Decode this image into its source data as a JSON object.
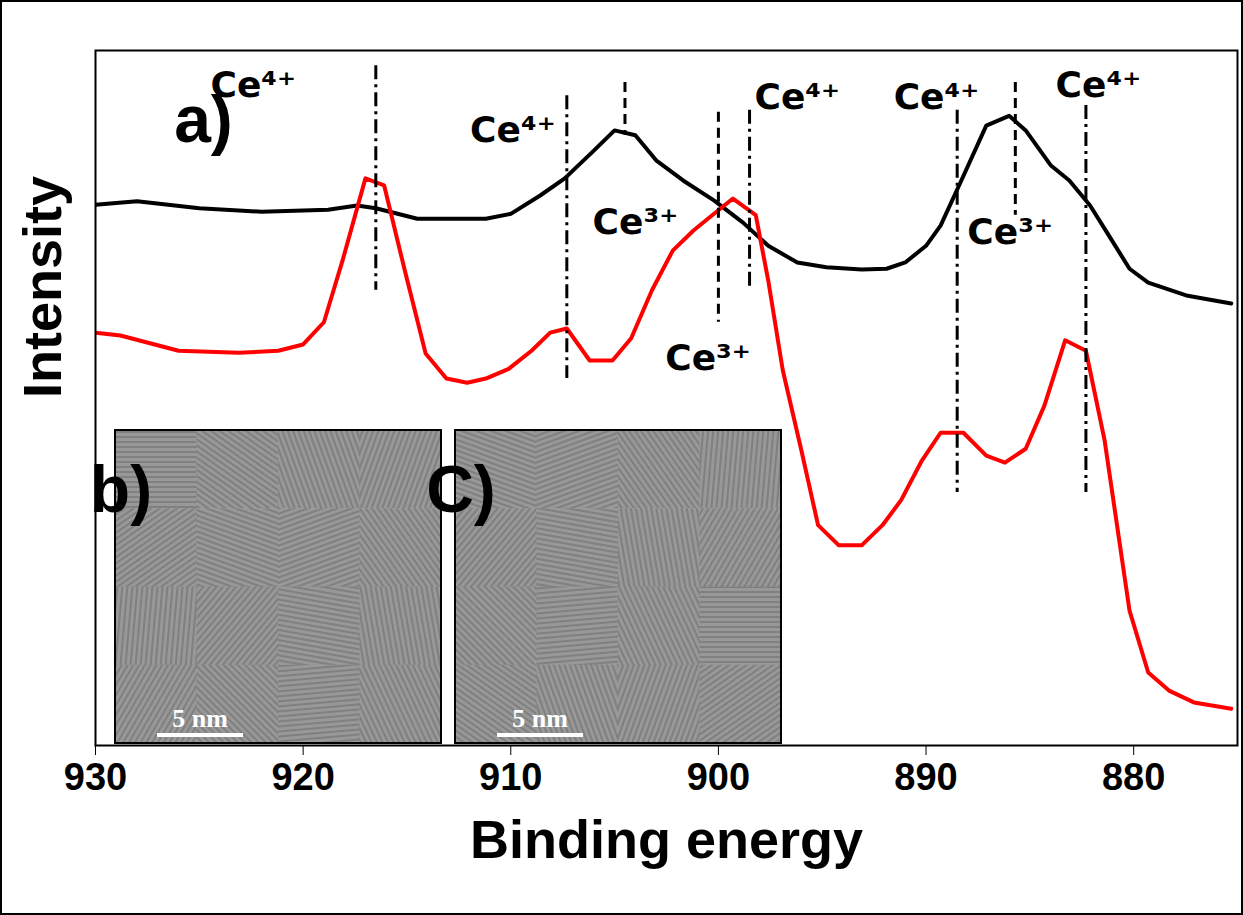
{
  "chart_data": {
    "type": "line",
    "xlabel": "Binding energy",
    "ylabel": "Intensity",
    "xlim": [
      930,
      875
    ],
    "xticks": [
      930,
      920,
      910,
      900,
      890,
      880
    ],
    "ylim": [
      0,
      100
    ],
    "tick_labels": "x",
    "grid": false,
    "series": [
      {
        "color": "#000000",
        "line_style": "solid",
        "x": [
          930,
          928,
          925,
          922,
          918.8,
          917.4,
          916.5,
          914.5,
          911.2,
          910,
          908.6,
          907.4,
          906,
          905,
          904,
          903,
          901.7,
          900.2,
          898.8,
          897.6,
          896.2,
          894.8,
          893.1,
          891.9,
          891,
          890,
          889.3,
          888.3,
          887.1,
          886,
          885.2,
          884,
          883.1,
          882.1,
          881.2,
          880.2,
          879.3,
          877.4,
          875.3
        ],
        "values": [
          77.8,
          78.3,
          77.3,
          76.8,
          77.1,
          77.7,
          77.3,
          75.8,
          75.8,
          76.5,
          79.1,
          81.6,
          85.6,
          88.5,
          87.8,
          84.2,
          81.3,
          78.4,
          75.2,
          71.9,
          69.5,
          68.8,
          68.5,
          68.6,
          69.5,
          71.9,
          74.8,
          81.3,
          89.2,
          90.6,
          88.5,
          83.5,
          81.3,
          77.7,
          73.4,
          68.6,
          66.6,
          64.7,
          63.6
        ]
      },
      {
        "color": "#ff0000",
        "line_style": "solid",
        "x": [
          930,
          928.8,
          926,
          923.1,
          921.2,
          920,
          919,
          918.1,
          917,
          916.1,
          915.1,
          914.1,
          913.1,
          912.1,
          911.2,
          910.1,
          909,
          908.1,
          907.3,
          906.2,
          905.1,
          904.2,
          903.2,
          902.2,
          901.2,
          900.3,
          899.3,
          898.2,
          897.6,
          896.9,
          896,
          895.2,
          894.2,
          893.1,
          892.1,
          891.2,
          890.2,
          889.3,
          888.2,
          887.1,
          886.2,
          885.2,
          884.3,
          883.3,
          882.3,
          881.4,
          880.2,
          879.3,
          878.3,
          877.1,
          875.3
        ],
        "values": [
          59.4,
          59,
          56.8,
          56.5,
          56.8,
          57.7,
          60.9,
          69.8,
          81.6,
          80.6,
          68.3,
          56.4,
          52.8,
          52.2,
          52.8,
          54.2,
          56.8,
          59.4,
          60,
          55.4,
          55.4,
          58.6,
          65.5,
          71.2,
          74.1,
          76.3,
          78.7,
          76.3,
          66.9,
          54,
          42.4,
          31.7,
          28.8,
          28.8,
          31.7,
          35.3,
          41,
          45,
          45,
          41.7,
          40.7,
          42.7,
          48.9,
          58.3,
          56.8,
          43.9,
          19.4,
          10.5,
          7.9,
          6.2,
          5.3
        ]
      }
    ],
    "annotations": [
      {
        "text": "Ce⁴⁺",
        "x": 916.5,
        "y1": 97.8,
        "y2": 65.5,
        "line_style": "dashdot",
        "label_x": 922.4,
        "label_y": 95
      },
      {
        "text": "Ce⁴⁺",
        "x": 907.3,
        "y1": 93.5,
        "y2": 52.8,
        "line_style": "dashdot",
        "label_x": 909.9,
        "label_y": 88.5
      },
      {
        "text": "Ce³⁺",
        "x": 904.5,
        "y1": 95.4,
        "y2": 87.8,
        "line_style": "dashed",
        "label_x": 904.0,
        "label_y": 75.3
      },
      {
        "text": "Ce³⁺",
        "x": 900,
        "y1": 91.1,
        "y2": 60.9,
        "line_style": "dashed",
        "label_x": 900.5,
        "label_y": 55.7
      },
      {
        "text": "Ce⁴⁺",
        "x": 898.5,
        "y1": 91.4,
        "y2": 65.5,
        "line_style": "dashdot",
        "label_x": 896.2,
        "label_y": 93.2
      },
      {
        "text": "Ce⁴⁺",
        "x": 888.5,
        "y1": 91.4,
        "y2": 36.4,
        "line_style": "dashdot",
        "label_x": 889.5,
        "label_y": 93.2
      },
      {
        "text": "Ce³⁺",
        "x": 885.7,
        "y1": 95.4,
        "y2": 76.3,
        "line_style": "dashed",
        "label_x": 885.95,
        "label_y": 73.8
      },
      {
        "text": "Ce⁴⁺",
        "x": 882.3,
        "y1": 92.1,
        "y2": 36.4,
        "line_style": "dashdot",
        "label_x": 881.7,
        "label_y": 95
      }
    ],
    "panel_label": {
      "text": "a)",
      "x": 924.8,
      "y": 89.9
    },
    "insets": [
      {
        "label": "b)",
        "scale_bar": "5 nm"
      },
      {
        "label": "C)",
        "scale_bar": "5 nm"
      }
    ]
  }
}
